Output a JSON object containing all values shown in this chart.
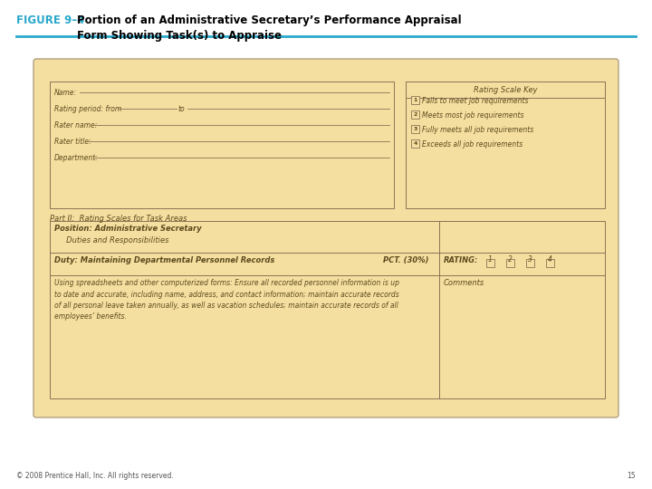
{
  "title_figure": "FIGURE 9–4",
  "title_label": "Portion of an Administrative Secretary’s Performance Appraisal\nForm Showing Task(s) to Appraise",
  "title_color": "#29A8CC",
  "title_label_color": "#000000",
  "bg_color": "#FFFFFF",
  "card_bg": "#F5DFA0",
  "card_border": "#8B7355",
  "line_color": "#8B7355",
  "text_color": "#5C4A1E",
  "header_line_color": "#29A8CC",
  "footer_text": "© 2008 Prentice Hall, Inc. All rights reserved.",
  "footer_page": "15",
  "rating_scale_title": "Rating Scale Key",
  "rating_scale_items": [
    "1  Fails to meet job requirements",
    "2  Meets most job requirements",
    "3  Fully meets all job requirements",
    "4  Exceeds all job requirements"
  ],
  "part_ii_label": "Part II:  Rating Scales for Task Areas",
  "position_label": "Position: Administrative Secretary",
  "position_sub": "     Duties and Responsibilities",
  "duty_label": "Duty: Maintaining Departmental Personnel Records",
  "pct_label": "PCT. (30%)",
  "rating_label": "RATING:",
  "rating_numbers": [
    "1",
    "2",
    "3",
    "4"
  ],
  "comments_label": "Comments",
  "description_text": "Using spreadsheets and other computerized forms: Ensure all recorded personnel information is up\nto date and accurate, including name, address, and contact information; maintain accurate records\nof all personal leave taken annually, as well as vacation schedules; maintain accurate records of all\nemployees’ benefits."
}
